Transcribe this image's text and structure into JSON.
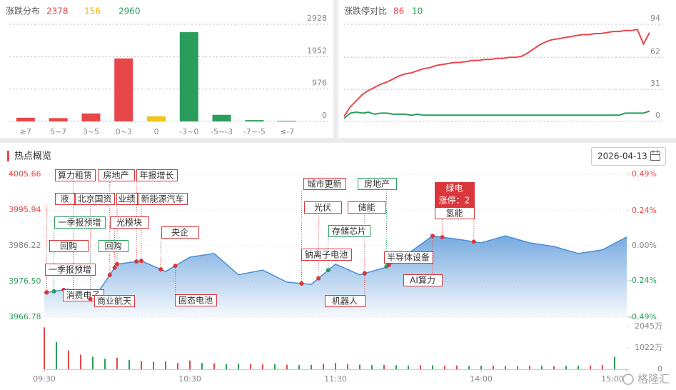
{
  "date": "2026-04-13",
  "watermark": "格隆汇",
  "chart_data": [
    {
      "type": "bar",
      "title": "涨跌分布",
      "summary": [
        2378,
        156,
        2960
      ],
      "summary_colors": [
        "#e8474a",
        "#f0b400",
        "#2a9d5c"
      ],
      "categories": [
        "≥7",
        "5~7",
        "3~5",
        "0~3",
        "0",
        "-3~0",
        "-5~-3",
        "-7~-5",
        "≤-7"
      ],
      "values": [
        110,
        100,
        240,
        1900,
        156,
        2690,
        200,
        40,
        20
      ],
      "colors": [
        "#e8474a",
        "#e8474a",
        "#e8474a",
        "#e8474a",
        "#f0c419",
        "#2a9d5c",
        "#2a9d5c",
        "#2a9d5c",
        "#2a9d5c"
      ],
      "ylim": [
        0,
        2928
      ],
      "yticks": [
        0,
        976,
        1952,
        2928
      ],
      "grid": true
    },
    {
      "type": "line",
      "title": "涨跌停对比",
      "summary": [
        86,
        10
      ],
      "summary_colors": [
        "#e8474a",
        "#2a9d5c"
      ],
      "series": [
        {
          "color": "#e8474a",
          "values": [
            5,
            14,
            20,
            26,
            30,
            33,
            36,
            38,
            41,
            44,
            46,
            47,
            49,
            51,
            52,
            54,
            55,
            56,
            57,
            57,
            58,
            59,
            59,
            60,
            60,
            61,
            61,
            62,
            62,
            63,
            66,
            70,
            74,
            77,
            79,
            80,
            81,
            82,
            83,
            84,
            84,
            85,
            85,
            86,
            87,
            87,
            88,
            88,
            89,
            75,
            86
          ]
        },
        {
          "color": "#2a9d5c",
          "values": [
            3,
            8,
            9,
            8,
            9,
            7,
            8,
            8,
            7,
            7,
            7,
            6,
            7,
            6,
            6,
            6,
            6,
            6,
            6,
            6,
            6,
            6,
            6,
            6,
            6,
            6,
            6,
            6,
            6,
            6,
            6,
            6,
            6,
            6,
            6,
            6,
            6,
            6,
            6,
            6,
            6,
            6,
            6,
            6,
            6,
            6,
            8,
            8,
            8,
            8,
            10
          ]
        }
      ],
      "ylim": [
        0,
        94
      ],
      "yticks": [
        0,
        31,
        62,
        94
      ],
      "grid": true
    },
    {
      "type": "area",
      "title": "热点概览",
      "color": "#4a8fd6",
      "x": [
        0,
        10,
        20,
        30,
        40,
        50,
        60,
        70,
        80,
        90,
        100,
        110,
        120,
        130,
        140,
        150,
        160,
        170,
        180,
        190,
        200,
        210,
        220,
        230,
        240
      ],
      "values": [
        3973.4,
        3974.4,
        3971.4,
        3981.2,
        3982.1,
        3979.2,
        3983.1,
        3984.1,
        3978.3,
        3979.6,
        3976.3,
        3975.7,
        3981.2,
        3978.3,
        3980.2,
        3984.1,
        3988.9,
        3988.0,
        3987.0,
        3988.9,
        3987.0,
        3986.0,
        3984.1,
        3985.1,
        3988.6
      ],
      "xlim": [
        0,
        240
      ],
      "xticks": [
        {
          "value": 0,
          "label": "09:30"
        },
        {
          "value": 60,
          "label": "10:30"
        },
        {
          "value": 120,
          "label": "11:30"
        },
        {
          "value": 180,
          "label": "14:00"
        },
        {
          "value": 240,
          "label": "15:00"
        }
      ],
      "ylim": [
        3966.78,
        4005.66
      ],
      "yticks": [
        3966.78,
        {
          "value": 3976.5,
          "label": "3976.50"
        },
        3986.22,
        3995.94,
        4005.66
      ],
      "y2lim": [
        -0.49,
        0.49
      ],
      "y2ticks": [
        {
          "value": -0.49,
          "label": "-0.49%"
        },
        {
          "value": -0.24,
          "label": "-0.24%"
        },
        {
          "value": 0,
          "label": "0.00%"
        },
        {
          "value": 0.24,
          "label": "0.24%"
        },
        {
          "value": 0.49,
          "label": "0.49%"
        }
      ],
      "annotations": [
        {
          "label": "算力租赁",
          "x": 12,
          "color": "#d9373b"
        },
        {
          "label": "房地产",
          "x": 27,
          "color": "#d9373b"
        },
        {
          "label": "年报增长",
          "x": 38,
          "color": "#d9373b"
        },
        {
          "label": "液",
          "x": 1,
          "color": "#d9373b"
        },
        {
          "label": "北京国资",
          "x": 19,
          "color": "#d9373b"
        },
        {
          "label": "业绩",
          "x": 30,
          "color": "#d9373b"
        },
        {
          "label": "新能源汽车",
          "x": 40,
          "color": "#d9373b"
        },
        {
          "label": "一季报预增",
          "x": 4,
          "color": "#2a9d5c"
        },
        {
          "label": "光模块",
          "x": 29,
          "color": "#d9373b"
        },
        {
          "label": "央企",
          "x": 48,
          "color": "#d9373b"
        },
        {
          "label": "回购",
          "x": 12,
          "color": "#d9373b"
        },
        {
          "label": "回购",
          "x": 19,
          "color": "#2a9d5c"
        },
        {
          "label": "一季报预增",
          "x": 1,
          "color": "#d9373b"
        },
        {
          "label": "消费电子",
          "x": 8,
          "color": "#d9373b"
        },
        {
          "label": "商业航天",
          "x": 19,
          "color": "#d9373b"
        },
        {
          "label": "固态电池",
          "x": 54,
          "color": "#d9373b"
        },
        {
          "label": "城市更新",
          "x": 106,
          "color": "#d9373b"
        },
        {
          "label": "房地产",
          "x": 141,
          "color": "#2a9d5c"
        },
        {
          "label": "光伏",
          "x": 113,
          "color": "#d9373b"
        },
        {
          "label": "储能",
          "x": 132,
          "color": "#d9373b"
        },
        {
          "label": "存储芯片",
          "x": 117,
          "color": "#2a9d5c"
        },
        {
          "label": "钠离子电池",
          "x": 106,
          "color": "#d9373b"
        },
        {
          "label": "机器人",
          "x": 132,
          "color": "#d9373b"
        },
        {
          "label": "半导体设备",
          "x": 142,
          "color": "#d9373b"
        },
        {
          "label": "AI算力",
          "x": 160,
          "color": "#d9373b"
        },
        {
          "label": "绿电",
          "sub": "涨停：2",
          "x": 164,
          "color": "#d9373b"
        },
        {
          "label": "氢能",
          "x": 177,
          "color": "#d9373b"
        }
      ]
    },
    {
      "type": "bar",
      "xlim": [
        0,
        240
      ],
      "x": [
        0,
        5,
        10,
        15,
        20,
        25,
        30,
        35,
        40,
        45,
        50,
        55,
        60,
        65,
        70,
        75,
        80,
        85,
        90,
        95,
        100,
        105,
        110,
        115,
        120,
        125,
        130,
        135,
        140,
        145,
        150,
        155,
        160,
        165,
        170,
        175,
        180,
        185,
        190,
        195,
        200,
        205,
        210,
        215,
        220,
        225,
        230,
        235
      ],
      "values": [
        2000,
        1300,
        900,
        700,
        600,
        500,
        550,
        450,
        400,
        350,
        380,
        300,
        420,
        300,
        280,
        250,
        260,
        240,
        230,
        250,
        220,
        200,
        210,
        260,
        300,
        240,
        220,
        200,
        210,
        190,
        180,
        200,
        190,
        170,
        180,
        160,
        170,
        180,
        160,
        150,
        170,
        160,
        150,
        160,
        170,
        180,
        200,
        600
      ],
      "colors": [
        "#e8474a",
        "#2a9d5c",
        "#e8474a",
        "#e8474a",
        "#2a9d5c",
        "#2a9d5c",
        "#e8474a",
        "#2a9d5c",
        "#e8474a",
        "#2a9d5c",
        "#2a9d5c",
        "#e8474a",
        "#e8474a",
        "#2a9d5c",
        "#e8474a",
        "#2a9d5c",
        "#2a9d5c",
        "#e8474a",
        "#e8474a",
        "#2a9d5c",
        "#e8474a",
        "#2a9d5c",
        "#2a9d5c",
        "#e8474a",
        "#e8474a",
        "#e8474a",
        "#2a9d5c",
        "#2a9d5c",
        "#e8474a",
        "#2a9d5c",
        "#2a9d5c",
        "#e8474a",
        "#2a9d5c",
        "#e8474a",
        "#e8474a",
        "#2a9d5c",
        "#2a9d5c",
        "#e8474a",
        "#2a9d5c",
        "#e8474a",
        "#e8474a",
        "#2a9d5c",
        "#e8474a",
        "#2a9d5c",
        "#2a9d5c",
        "#e8474a",
        "#e8474a",
        "#2a9d5c"
      ],
      "ylim": [
        0,
        2045
      ],
      "yticks": [
        0,
        {
          "value": 1022,
          "label": "1022万"
        },
        {
          "value": 2045,
          "label": "2045万"
        }
      ]
    }
  ]
}
